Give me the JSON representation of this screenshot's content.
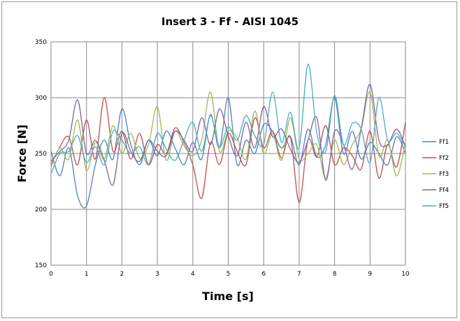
{
  "chart_data": {
    "type": "line",
    "title": "Insert 3 - Ff - AISI 1045",
    "xlabel": "Time [s]",
    "ylabel": "Force [N]",
    "xlim": [
      0,
      10
    ],
    "ylim": [
      150,
      350
    ],
    "x_ticks": [
      "0",
      "1",
      "2",
      "3",
      "4",
      "5",
      "6",
      "7",
      "8",
      "9",
      "10"
    ],
    "y_ticks": [
      "150",
      "200",
      "250",
      "300",
      "350"
    ],
    "grid": true,
    "legend_position": "right",
    "x": [
      0,
      0.25,
      0.5,
      0.75,
      1,
      1.25,
      1.5,
      1.75,
      2,
      2.25,
      2.5,
      2.75,
      3,
      3.25,
      3.5,
      3.75,
      4,
      4.25,
      4.5,
      4.75,
      5,
      5.25,
      5.5,
      5.75,
      6,
      6.25,
      6.5,
      6.75,
      7,
      7.25,
      7.5,
      7.75,
      8,
      8.25,
      8.5,
      8.75,
      9,
      9.25,
      9.5,
      9.75,
      10
    ],
    "series": [
      {
        "name": "Ff1",
        "color": "#4f81bd",
        "values": [
          252,
          230,
          255,
          212,
          203,
          240,
          262,
          245,
          290,
          258,
          240,
          262,
          248,
          270,
          255,
          240,
          260,
          245,
          285,
          255,
          300,
          240,
          262,
          250,
          276,
          270,
          255,
          265,
          240,
          272,
          247,
          258,
          300,
          250,
          270,
          245,
          260,
          250,
          240,
          265,
          250
        ]
      },
      {
        "name": "Ff2",
        "color": "#c0504d",
        "values": [
          240,
          256,
          265,
          240,
          280,
          245,
          300,
          252,
          270,
          245,
          268,
          240,
          258,
          250,
          273,
          260,
          240,
          210,
          260,
          240,
          268,
          252,
          240,
          282,
          255,
          270,
          246,
          265,
          206,
          262,
          247,
          275,
          240,
          255,
          248,
          236,
          270,
          228,
          258,
          238,
          278
        ]
      },
      {
        "name": "Ff3",
        "color": "#9bbb59",
        "values": [
          238,
          255,
          245,
          280,
          235,
          260,
          245,
          275,
          250,
          268,
          246,
          258,
          292,
          244,
          270,
          257,
          248,
          262,
          305,
          252,
          270,
          264,
          245,
          288,
          250,
          268,
          244,
          282,
          245,
          250,
          258,
          228,
          262,
          240,
          258,
          272,
          305,
          248,
          262,
          230,
          260
        ]
      },
      {
        "name": "Ff4",
        "color": "#8064a2",
        "values": [
          243,
          252,
          262,
          298,
          250,
          262,
          244,
          222,
          268,
          252,
          243,
          262,
          252,
          248,
          270,
          262,
          252,
          282,
          258,
          290,
          266,
          248,
          278,
          255,
          292,
          265,
          272,
          254,
          242,
          262,
          282,
          226,
          270,
          258,
          236,
          272,
          312,
          262,
          258,
          272,
          256
        ]
      },
      {
        "name": "Ff5",
        "color": "#4bacc6",
        "values": [
          232,
          250,
          252,
          266,
          242,
          256,
          240,
          270,
          262,
          250,
          256,
          240,
          268,
          254,
          244,
          262,
          278,
          252,
          284,
          256,
          274,
          262,
          284,
          266,
          258,
          305,
          260,
          287,
          255,
          330,
          268,
          252,
          302,
          258,
          277,
          272,
          242,
          300,
          262,
          268,
          256
        ]
      }
    ]
  }
}
